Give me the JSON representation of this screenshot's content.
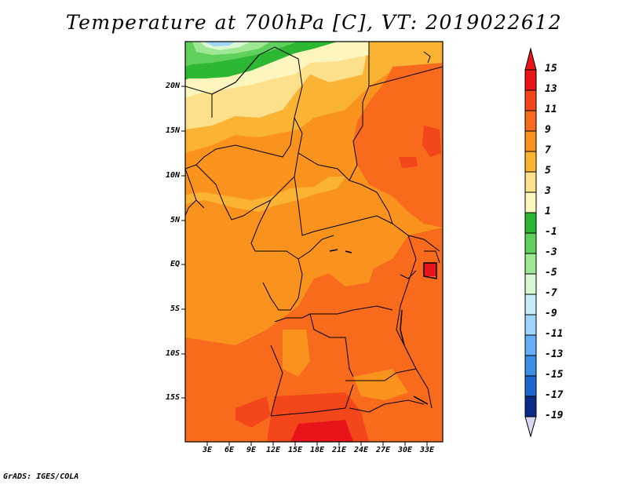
{
  "title": "Temperature at 700hPa [C], VT: 2019022612",
  "credit": "GrADS: IGES/COLA",
  "map": {
    "lat_labels": [
      "20N",
      "15N",
      "10N",
      "5N",
      "EQ",
      "5S",
      "10S",
      "15S"
    ],
    "lon_labels": [
      "3E",
      "6E",
      "9E",
      "12E",
      "15E",
      "18E",
      "21E",
      "24E",
      "27E",
      "30E",
      "33E"
    ]
  },
  "colorbar": {
    "labels": [
      "15",
      "13",
      "11",
      "9",
      "7",
      "5",
      "3",
      "1",
      "-1",
      "-3",
      "-5",
      "-7",
      "-9",
      "-11",
      "-13",
      "-15",
      "-17",
      "-19"
    ],
    "colors": [
      "#e8141a",
      "#f4461b",
      "#f86a1c",
      "#fa931e",
      "#fbb334",
      "#fde08c",
      "#fcf5be",
      "#2cb832",
      "#60d05c",
      "#9ee894",
      "#daf7d4",
      "#c6eafa",
      "#9fd5fb",
      "#64aff5",
      "#3d8fe6",
      "#2066cf",
      "#1346a8",
      "#0b2b88",
      "#050d5c",
      "#d8d8f0"
    ]
  }
}
